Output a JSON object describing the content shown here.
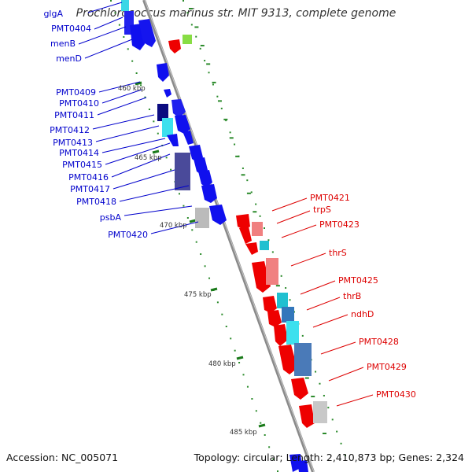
{
  "title": "Prochlorococcus marinus str. MIT 9313, complete genome",
  "footer": {
    "accession": "Accession: NC_005071",
    "summary": "Topology: circular; Length: 2,410,873 bp; Genes: 2,324"
  },
  "colors": {
    "forward_gene": "#0000dd",
    "reverse_gene": "#ee0000",
    "forward_label": "#0000cc",
    "reverse_label": "#dd0000",
    "backbone": "#888888",
    "tick": "#1a7a1a",
    "dotted_ring": "#2a8a2a"
  },
  "scale_labels": [
    "460 kbp",
    "465 kbp",
    "470 kbp",
    "475 kbp",
    "480 kbp",
    "485 kbp"
  ],
  "forward_labels": [
    "glgA",
    "PMT0404",
    "menB",
    "menD",
    "PMT0409",
    "PMT0410",
    "PMT0411",
    "PMT0412",
    "PMT0413",
    "PMT0414",
    "PMT0415",
    "PMT0416",
    "PMT0417",
    "PMT0418",
    "psbA",
    "PMT0420"
  ],
  "reverse_labels": [
    "PMT0421",
    "trpS",
    "PMT0423",
    "thrS",
    "PMT0425",
    "thrB",
    "ndhD",
    "PMT0428",
    "PMT0429",
    "PMT0430"
  ]
}
